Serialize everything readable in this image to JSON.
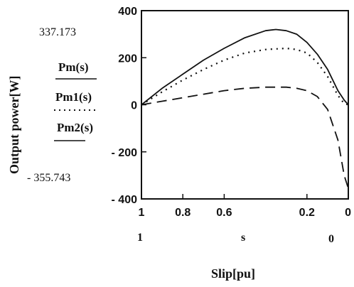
{
  "chart_data": {
    "type": "line",
    "xlabel": "Slip[pu]",
    "ylabel": "Output power[W]",
    "xlim": [
      1,
      0
    ],
    "ylim": [
      -400,
      400
    ],
    "x_ticks": [
      "1",
      "0.8",
      "0.6",
      "0.2",
      "0"
    ],
    "y_ticks": [
      "400",
      "200",
      "0",
      "- 200",
      "- 400"
    ],
    "x_range_labels": {
      "left": "1",
      "center": "s",
      "right": "0"
    },
    "y_range_labels": {
      "top": "337.173",
      "bottom": "- 355.743"
    },
    "grid": false,
    "legend_placement": "left",
    "series": [
      {
        "name": "Pm(s)",
        "style": "solid",
        "x": [
          1.0,
          0.9,
          0.8,
          0.7,
          0.6,
          0.5,
          0.4,
          0.35,
          0.3,
          0.25,
          0.2,
          0.15,
          0.1,
          0.05,
          0.02,
          0.0
        ],
        "y": [
          0,
          70,
          130,
          190,
          240,
          285,
          315,
          320,
          315,
          300,
          265,
          215,
          150,
          60,
          20,
          0
        ]
      },
      {
        "name": "Pm1(s)",
        "style": "dotted",
        "x": [
          1.0,
          0.9,
          0.8,
          0.7,
          0.6,
          0.5,
          0.4,
          0.3,
          0.25,
          0.2,
          0.15,
          0.1,
          0.05,
          0.02,
          0.0
        ],
        "y": [
          0,
          55,
          105,
          150,
          190,
          220,
          235,
          240,
          235,
          220,
          180,
          120,
          40,
          5,
          0
        ]
      },
      {
        "name": "Pm2(s)",
        "style": "dashed",
        "x": [
          1.0,
          0.9,
          0.8,
          0.7,
          0.6,
          0.5,
          0.4,
          0.3,
          0.25,
          0.2,
          0.15,
          0.1,
          0.05,
          0.02,
          0.0
        ],
        "y": [
          0,
          15,
          30,
          45,
          60,
          70,
          75,
          75,
          70,
          60,
          35,
          -20,
          -150,
          -300,
          -355
        ]
      }
    ]
  }
}
